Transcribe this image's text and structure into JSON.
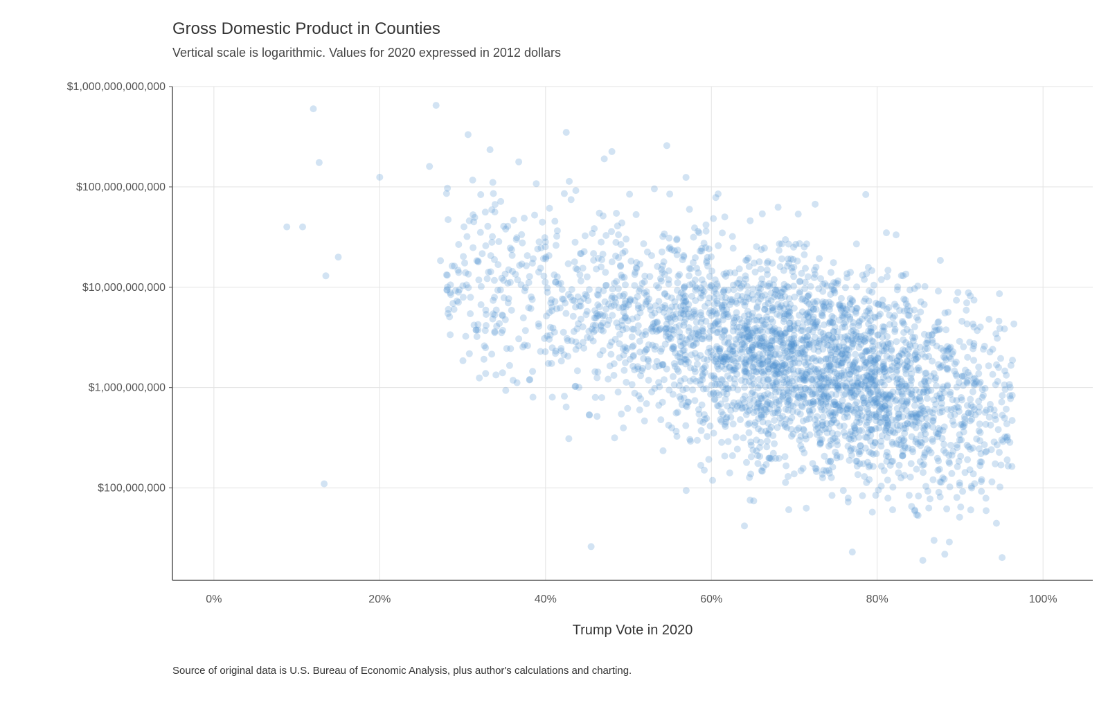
{
  "chart_data": {
    "type": "scatter",
    "title": "Gross Domestic Product in Counties",
    "subtitle": "Vertical scale is logarithmic. Values for 2020 expressed in 2012 dollars",
    "xlabel": "Trump Vote in 2020",
    "ylabel": "",
    "caption": "Source of original data is U.S. Bureau of Economic Analysis, plus author's calculations and charting.",
    "x_scale": "linear",
    "y_scale": "log10",
    "xlim": [
      -0.05,
      1.06
    ],
    "ylim": [
      12000000,
      1000000000000
    ],
    "x_ticks": [
      0,
      0.2,
      0.4,
      0.6,
      0.8,
      1.0
    ],
    "x_tick_labels": [
      "0%",
      "20%",
      "40%",
      "60%",
      "80%",
      "100%"
    ],
    "y_ticks": [
      100000000,
      1000000000,
      10000000000,
      100000000000,
      1000000000000
    ],
    "y_tick_labels": [
      "$100,000,000",
      "$1,000,000,000",
      "$10,000,000,000",
      "$100,000,000,000",
      "$1,000,000,000,000"
    ],
    "grid": true,
    "legend": "none",
    "point_color": "#4a8fd0",
    "point_opacity": 0.25,
    "approx_point_count": 3100,
    "representative_points": [
      {
        "x": 0.12,
        "y": 600000000000
      },
      {
        "x": 0.268,
        "y": 650000000000
      },
      {
        "x": 0.127,
        "y": 175000000000
      },
      {
        "x": 0.425,
        "y": 350000000000
      },
      {
        "x": 0.333,
        "y": 235000000000
      },
      {
        "x": 0.48,
        "y": 225000000000
      },
      {
        "x": 0.088,
        "y": 40000000000
      },
      {
        "x": 0.107,
        "y": 40000000000
      },
      {
        "x": 0.135,
        "y": 13000000000
      },
      {
        "x": 0.15,
        "y": 20000000000
      },
      {
        "x": 0.2,
        "y": 125000000000
      },
      {
        "x": 0.26,
        "y": 160000000000
      },
      {
        "x": 0.96,
        "y": 830000000
      },
      {
        "x": 0.91,
        "y": 8800000000
      },
      {
        "x": 0.935,
        "y": 4800000000
      },
      {
        "x": 0.855,
        "y": 19000000
      },
      {
        "x": 0.77,
        "y": 23000000
      },
      {
        "x": 0.455,
        "y": 26000000
      },
      {
        "x": 0.133,
        "y": 110000000
      },
      {
        "x": 0.685,
        "y": 27000000000
      },
      {
        "x": 0.715,
        "y": 27000000000
      },
      {
        "x": 0.775,
        "y": 27000000000
      }
    ],
    "density_description": "Dense cloud of counties centred around 65–85% Trump vote and $200M–$3B GDP; sparse, higher-GDP counties at lower Trump vote shares"
  }
}
